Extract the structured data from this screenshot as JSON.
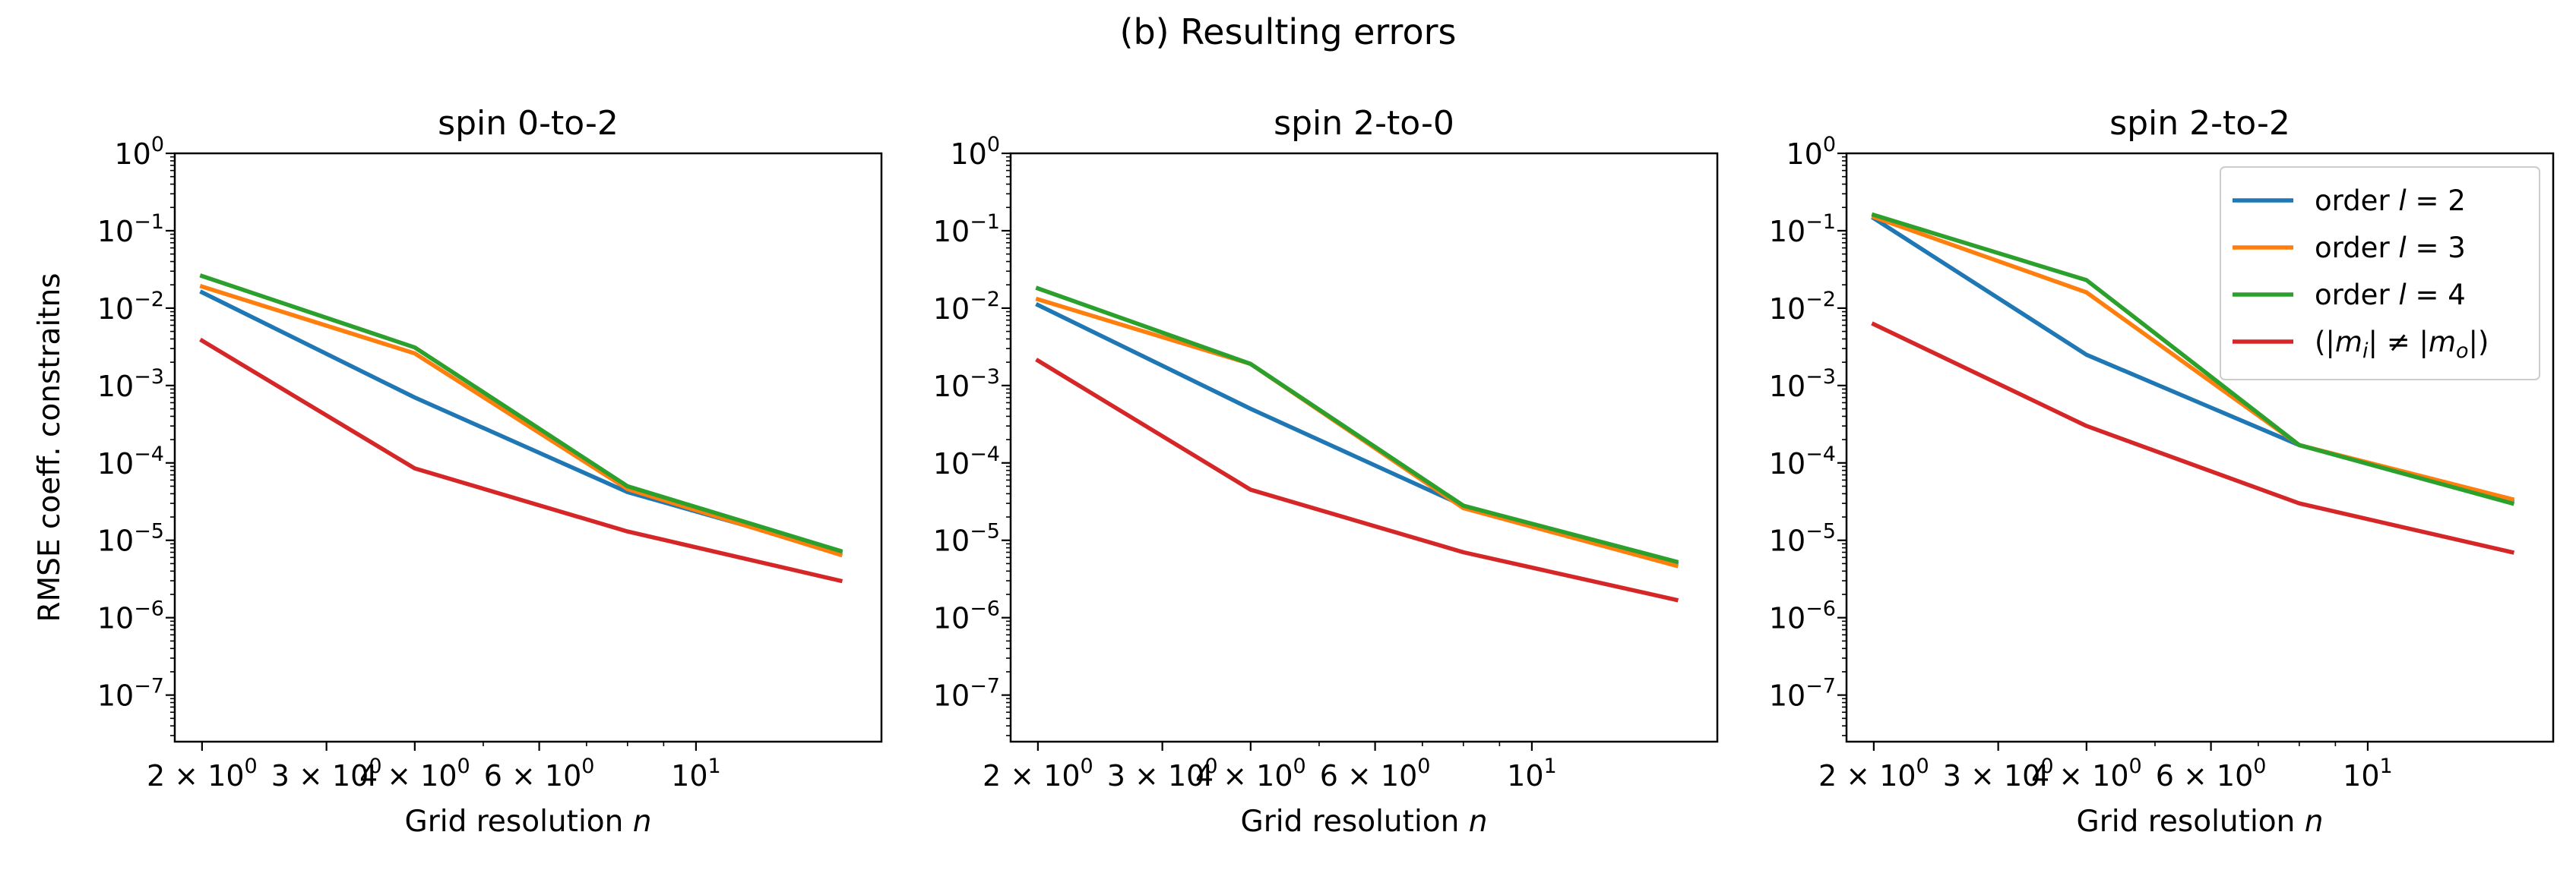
{
  "figure": {
    "suptitle": "(b) Resulting errors"
  },
  "chart_data": [
    {
      "type": "line",
      "title": "spin 0-to-2",
      "xlabel": "Grid resolution n",
      "ylabel": "RMSE coeff. constraitns",
      "xscale": "log",
      "yscale": "log",
      "xlim": [
        1.83,
        18.3
      ],
      "ylim": [
        2.5e-08,
        1.0
      ],
      "x": [
        2,
        4,
        8,
        16
      ],
      "series": [
        {
          "name": "order l = 2",
          "color": "#1f77b4",
          "values": [
            0.016,
            0.0007,
            4.2e-05,
            7e-06
          ]
        },
        {
          "name": "order l = 3",
          "color": "#ff7f0e",
          "values": [
            0.019,
            0.0026,
            4.6e-05,
            6.5e-06
          ]
        },
        {
          "name": "order l = 4",
          "color": "#2ca02c",
          "values": [
            0.026,
            0.0031,
            5e-05,
            7.3e-06
          ]
        },
        {
          "name": "(|m_i| ≠ |m_o|)",
          "color": "#d62728",
          "values": [
            0.0038,
            8.5e-05,
            1.3e-05,
            3e-06
          ]
        }
      ],
      "legend": null
    },
    {
      "type": "line",
      "title": "spin 2-to-0",
      "xlabel": "Grid resolution n",
      "ylabel": "",
      "xscale": "log",
      "yscale": "log",
      "xlim": [
        1.83,
        18.3
      ],
      "ylim": [
        2.5e-08,
        1.0
      ],
      "x": [
        2,
        4,
        8,
        16
      ],
      "series": [
        {
          "name": "order l = 2",
          "color": "#1f77b4",
          "values": [
            0.011,
            0.0005,
            2.8e-05,
            5e-06
          ]
        },
        {
          "name": "order l = 3",
          "color": "#ff7f0e",
          "values": [
            0.013,
            0.0019,
            2.6e-05,
            4.7e-06
          ]
        },
        {
          "name": "order l = 4",
          "color": "#2ca02c",
          "values": [
            0.018,
            0.0019,
            2.8e-05,
            5.3e-06
          ]
        },
        {
          "name": "(|m_i| ≠ |m_o|)",
          "color": "#d62728",
          "values": [
            0.0021,
            4.5e-05,
            7e-06,
            1.7e-06
          ]
        }
      ],
      "legend": null
    },
    {
      "type": "line",
      "title": "spin 2-to-2",
      "xlabel": "Grid resolution n",
      "ylabel": "",
      "xscale": "log",
      "yscale": "log",
      "xlim": [
        1.83,
        18.3
      ],
      "ylim": [
        2.5e-08,
        1.0
      ],
      "x": [
        2,
        4,
        8,
        16
      ],
      "series": [
        {
          "name": "order l = 2",
          "color": "#1f77b4",
          "values": [
            0.145,
            0.0025,
            0.00017,
            3.2e-05
          ]
        },
        {
          "name": "order l = 3",
          "color": "#ff7f0e",
          "values": [
            0.15,
            0.016,
            0.00017,
            3.4e-05
          ]
        },
        {
          "name": "order l = 4",
          "color": "#2ca02c",
          "values": [
            0.16,
            0.023,
            0.00017,
            3e-05
          ]
        },
        {
          "name": "(|m_i| ≠ |m_o|)",
          "color": "#d62728",
          "values": [
            0.0062,
            0.0003,
            3e-05,
            7e-06
          ]
        }
      ],
      "legend": "upper right"
    }
  ],
  "xticks": {
    "major": [
      {
        "value": 2,
        "mantissa": "2 × 10",
        "exp": "0"
      },
      {
        "value": 3,
        "mantissa": "3 × 10",
        "exp": "0"
      },
      {
        "value": 4,
        "mantissa": "4 × 10",
        "exp": "0"
      },
      {
        "value": 6,
        "mantissa": "6 × 10",
        "exp": "0"
      },
      {
        "value": 10,
        "mantissa": "10",
        "exp": "1"
      }
    ],
    "minor": [
      5,
      7,
      8,
      9
    ]
  },
  "yticks": [
    {
      "value": 1,
      "exp": "0"
    },
    {
      "value": 0.1,
      "exp": "−1"
    },
    {
      "value": 0.01,
      "exp": "−2"
    },
    {
      "value": 0.001,
      "exp": "−3"
    },
    {
      "value": 0.0001,
      "exp": "−4"
    },
    {
      "value": 1e-05,
      "exp": "−5"
    },
    {
      "value": 1e-06,
      "exp": "−6"
    },
    {
      "value": 1e-07,
      "exp": "−7"
    }
  ],
  "legend_entries": [
    {
      "pre": "order ",
      "var": "l",
      "post": " = 2",
      "color": "#1f77b4"
    },
    {
      "pre": "order ",
      "var": "l",
      "post": " = 3",
      "color": "#ff7f0e"
    },
    {
      "pre": "order ",
      "var": "l",
      "post": " = 4",
      "color": "#2ca02c"
    },
    {
      "pre": "(|",
      "var": "m",
      "sub": "i",
      "mid": "| ≠ |",
      "var2": "m",
      "sub2": "o",
      "post": "|)",
      "color": "#d62728"
    }
  ]
}
